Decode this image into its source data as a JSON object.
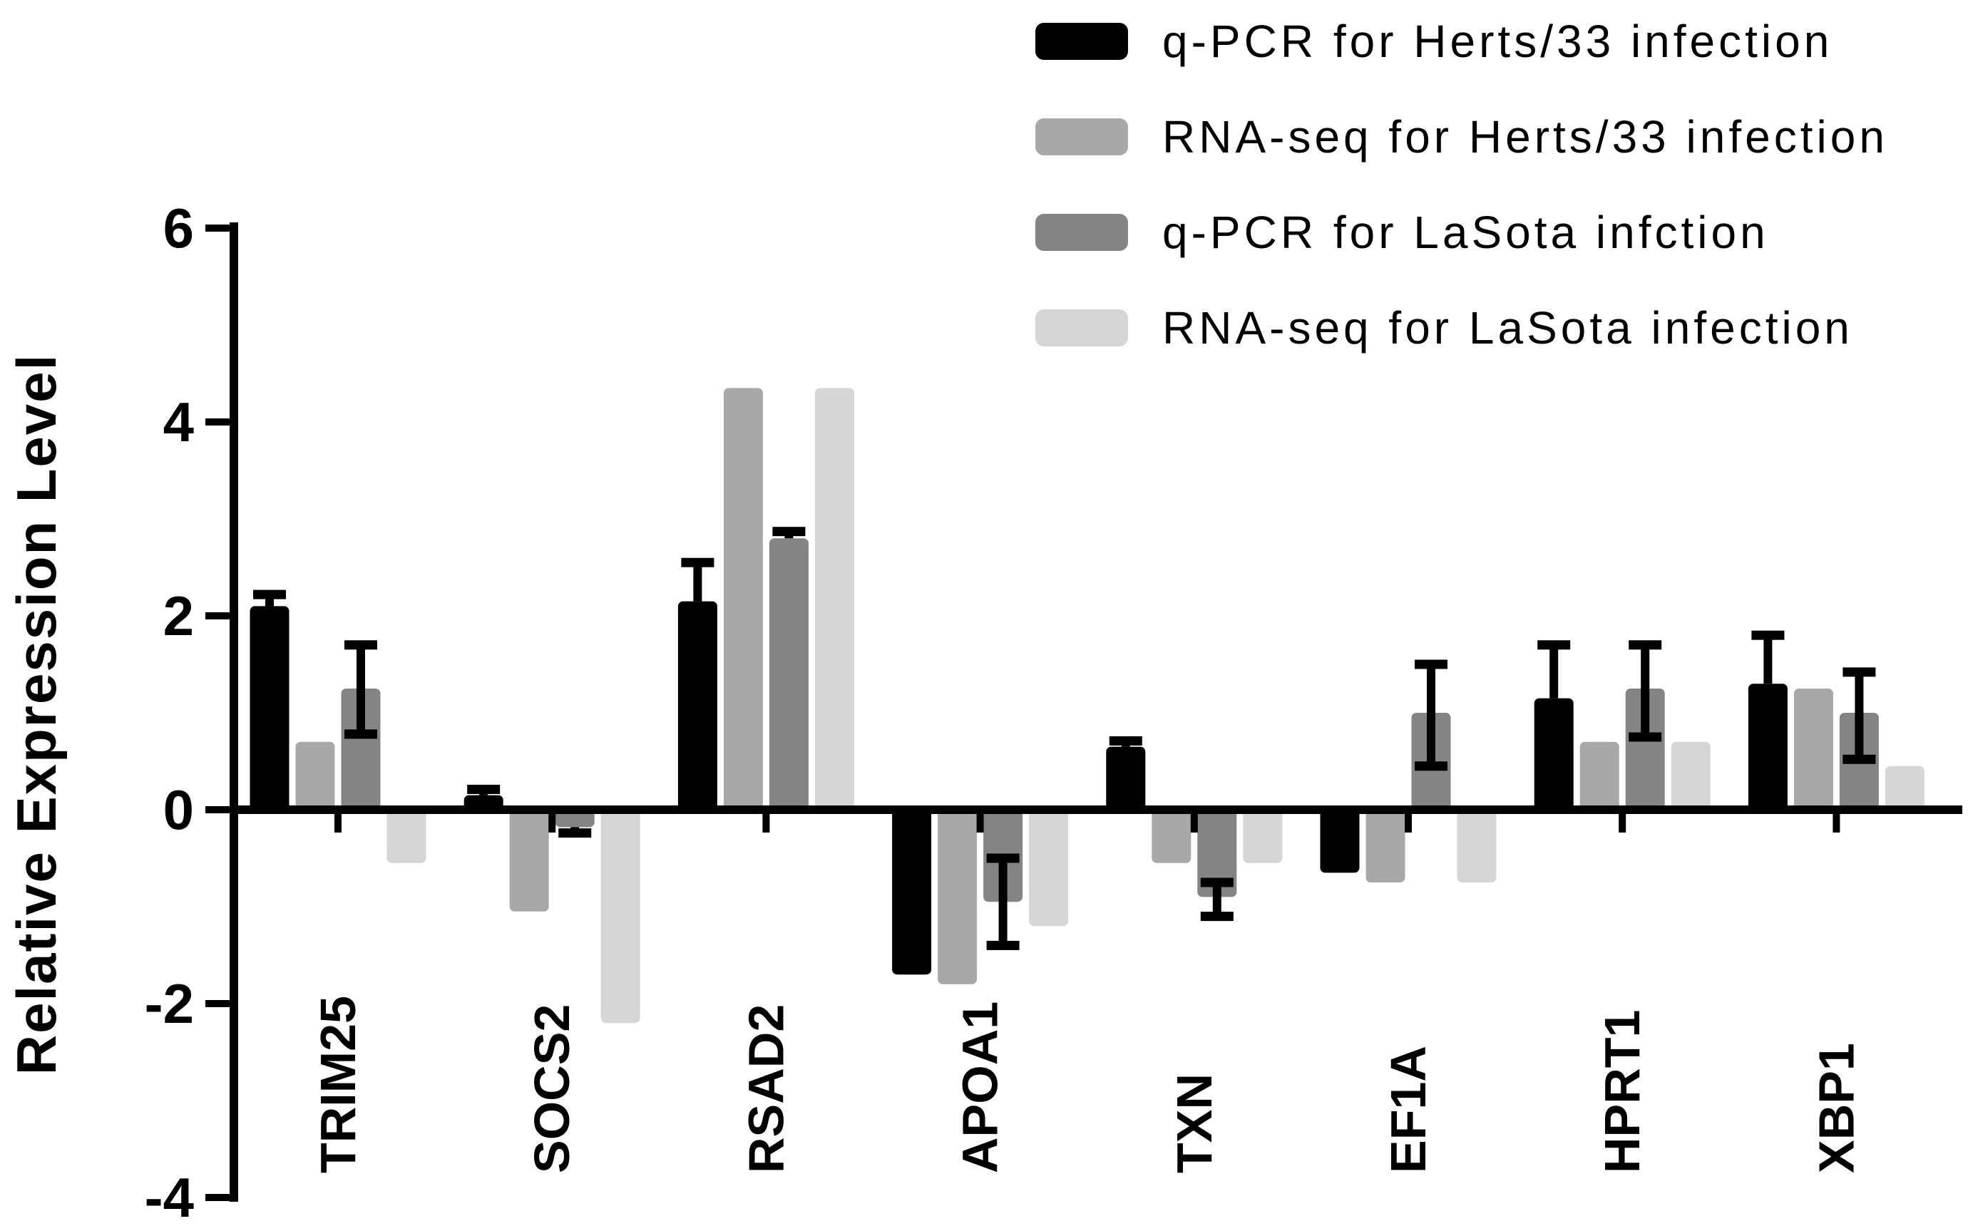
{
  "chart_data": {
    "type": "bar",
    "title": "",
    "xlabel": "",
    "ylabel": "Relative Expression Level",
    "ylim": [
      -4,
      6
    ],
    "yticks": [
      6,
      4,
      2,
      0,
      -2,
      -4
    ],
    "grid": false,
    "legend_position": "top-right",
    "background_color": "#ffffff",
    "axis_color": "#000000",
    "error_bar_color": "#000000",
    "categories": [
      "TRIM25",
      "SOCS2",
      "RSAD2",
      "APOA1",
      "TXN",
      "EF1A",
      "HPRT1",
      "XBP1"
    ],
    "series": [
      {
        "name": "q-PCR for Herts/33 infection",
        "color": "#000000",
        "values": [
          2.1,
          0.15,
          2.15,
          -1.7,
          0.65,
          -0.65,
          1.15,
          1.3
        ],
        "err_up": [
          0.12,
          0.06,
          0.4,
          0,
          0.06,
          0,
          0.55,
          0.5
        ],
        "err_down": [
          0,
          0,
          0,
          0,
          0,
          0,
          0,
          0
        ]
      },
      {
        "name": "RNA-seq for Herts/33 infection",
        "color": "#a8a8a8",
        "values": [
          0.7,
          -1.05,
          4.35,
          -1.8,
          -0.55,
          -0.75,
          0.7,
          1.25
        ],
        "err_up": [
          0,
          0,
          0,
          0,
          0,
          0,
          0,
          0
        ],
        "err_down": [
          0,
          0,
          0,
          0,
          0,
          0,
          0,
          0
        ]
      },
      {
        "name": "q-PCR for LaSota infction",
        "color": "#848484",
        "values": [
          1.25,
          -0.18,
          2.8,
          -0.95,
          -0.9,
          1.0,
          1.25,
          1.0
        ],
        "err_up": [
          0.45,
          0,
          0.07,
          0.45,
          0.15,
          0.5,
          0.45,
          0.42
        ],
        "err_down": [
          0.47,
          0.06,
          0,
          0.45,
          0.2,
          0.55,
          0.5,
          0.48
        ]
      },
      {
        "name": "RNA-seq for LaSota infection",
        "color": "#d6d6d6",
        "values": [
          -0.55,
          -2.2,
          4.35,
          -1.2,
          -0.55,
          -0.75,
          0.7,
          0.45
        ],
        "err_up": [
          0,
          0,
          0,
          0,
          0,
          0,
          0,
          0
        ],
        "err_down": [
          0,
          0,
          0,
          0,
          0,
          0,
          0,
          0
        ]
      }
    ]
  }
}
